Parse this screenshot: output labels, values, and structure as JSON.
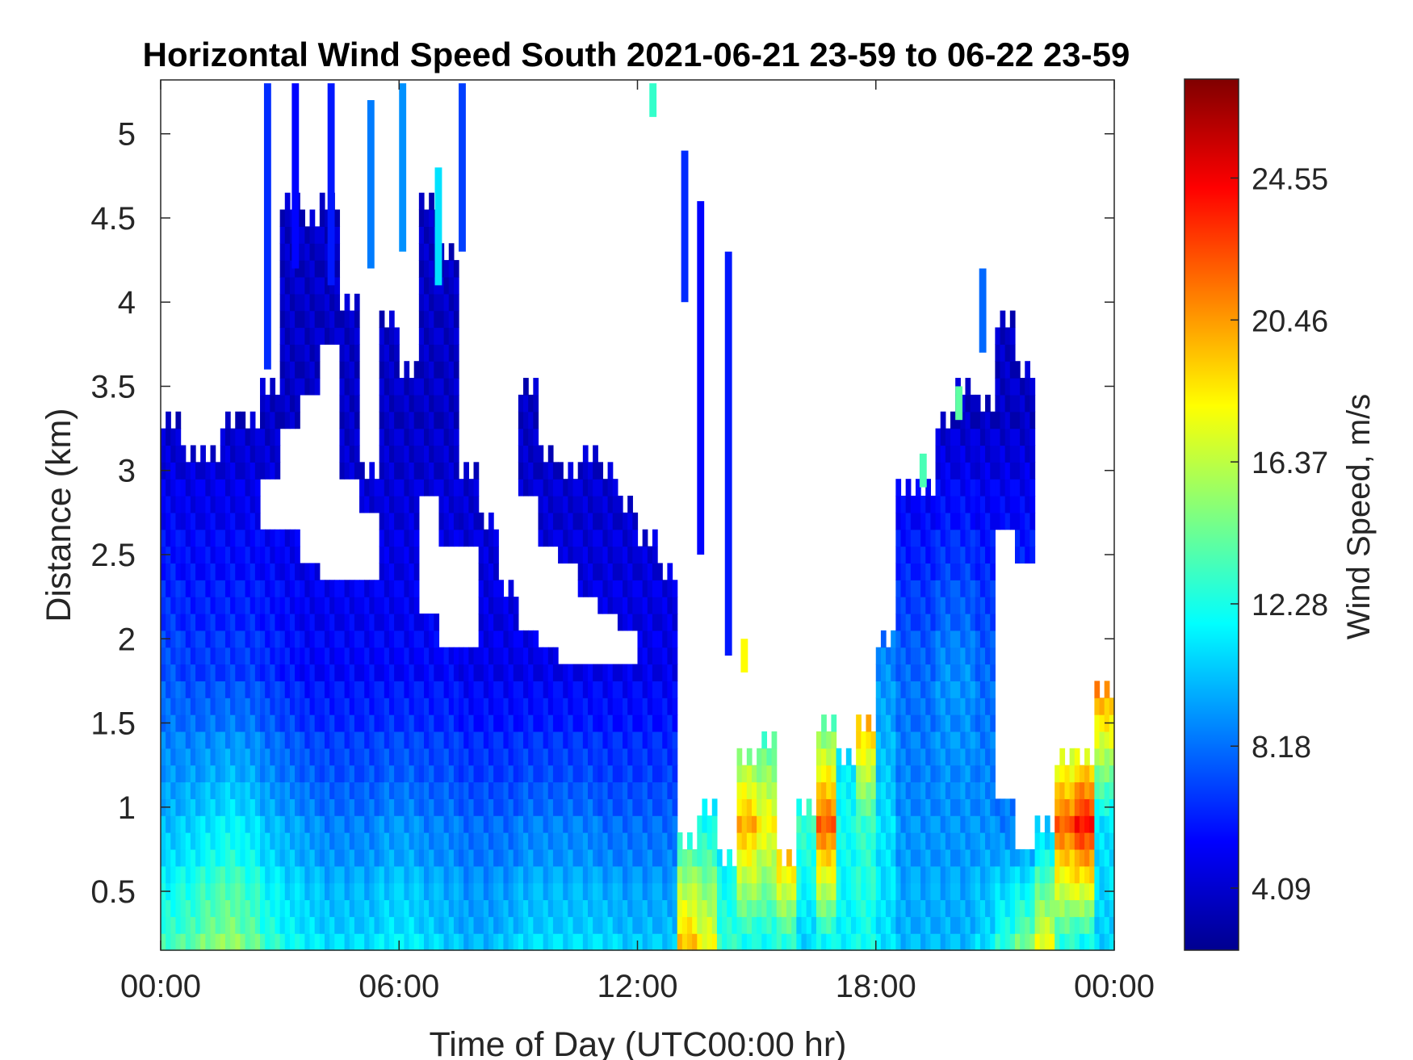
{
  "chart_data": {
    "type": "heatmap",
    "title": "Horizontal Wind Speed South 2021-06-21 23-59 to 06-22 23-59",
    "xlabel": "Time of Day (UTC00:00 hr)",
    "ylabel": "Distance (km)",
    "colorbar_label": "Wind Speed, m/s",
    "colormap": "jet",
    "xlim": [
      0,
      24
    ],
    "ylim": [
      0.15,
      5.32
    ],
    "clim": [
      2.3,
      27.4
    ],
    "x_ticks": [
      {
        "value": 0,
        "label": "00:00"
      },
      {
        "value": 6,
        "label": "06:00"
      },
      {
        "value": 12,
        "label": "12:00"
      },
      {
        "value": 18,
        "label": "18:00"
      },
      {
        "value": 24,
        "label": "00:00"
      }
    ],
    "y_ticks": [
      {
        "value": 0.5,
        "label": "0.5"
      },
      {
        "value": 1,
        "label": "1"
      },
      {
        "value": 1.5,
        "label": "1.5"
      },
      {
        "value": 2,
        "label": "2"
      },
      {
        "value": 2.5,
        "label": "2.5"
      },
      {
        "value": 3,
        "label": "3"
      },
      {
        "value": 3.5,
        "label": "3.5"
      },
      {
        "value": 4,
        "label": "4"
      },
      {
        "value": 4.5,
        "label": "4.5"
      },
      {
        "value": 5,
        "label": "5"
      }
    ],
    "colorbar_ticks": [
      {
        "value": 4.09,
        "label": "4.09"
      },
      {
        "value": 8.18,
        "label": "8.18"
      },
      {
        "value": 12.28,
        "label": "12.28"
      },
      {
        "value": 16.37,
        "label": "16.37"
      },
      {
        "value": 20.46,
        "label": "20.46"
      },
      {
        "value": 24.55,
        "label": "24.55"
      }
    ],
    "height_step_km": 0.1,
    "columns": [
      {
        "t": 0.0,
        "top": 3.2,
        "low": 13.5,
        "mid": 10.0,
        "up": 7.5,
        "gaps": []
      },
      {
        "t": 0.5,
        "top": 3.1,
        "low": 14.0,
        "mid": 10.5,
        "up": 7.0,
        "gaps": []
      },
      {
        "t": 1.0,
        "top": 3.1,
        "low": 15.0,
        "mid": 11.0,
        "up": 7.0,
        "gaps": []
      },
      {
        "t": 1.5,
        "top": 3.2,
        "low": 15.5,
        "mid": 11.5,
        "up": 7.0,
        "gaps": []
      },
      {
        "t": 2.0,
        "top": 3.3,
        "low": 14.5,
        "mid": 11.0,
        "up": 7.0,
        "gaps": []
      },
      {
        "t": 2.5,
        "top": 3.5,
        "low": 13.0,
        "mid": 10.0,
        "up": 6.5,
        "gaps": [
          [
            2.7,
            3.0
          ]
        ]
      },
      {
        "t": 3.0,
        "top": 4.5,
        "low": 12.0,
        "mid": 9.5,
        "up": 6.0,
        "gaps": [
          [
            2.7,
            3.3
          ]
        ]
      },
      {
        "t": 3.5,
        "top": 4.5,
        "low": 11.5,
        "mid": 9.0,
        "up": 5.5,
        "gaps": [
          [
            2.5,
            3.5
          ]
        ]
      },
      {
        "t": 4.0,
        "top": 4.6,
        "low": 11.0,
        "mid": 8.5,
        "up": 5.5,
        "gaps": [
          [
            2.4,
            3.8
          ]
        ]
      },
      {
        "t": 4.5,
        "top": 3.9,
        "low": 11.0,
        "mid": 8.5,
        "up": 5.5,
        "gaps": [
          [
            2.4,
            3.0
          ]
        ]
      },
      {
        "t": 5.0,
        "top": 3.0,
        "low": 11.0,
        "mid": 8.5,
        "up": 5.5,
        "gaps": [
          [
            2.4,
            2.8
          ]
        ]
      },
      {
        "t": 5.5,
        "top": 3.9,
        "low": 11.5,
        "mid": 9.0,
        "up": 5.5,
        "gaps": []
      },
      {
        "t": 6.0,
        "top": 3.5,
        "low": 11.5,
        "mid": 9.0,
        "up": 5.5,
        "gaps": []
      },
      {
        "t": 6.5,
        "top": 4.6,
        "low": 11.0,
        "mid": 8.5,
        "up": 5.5,
        "gaps": [
          [
            2.2,
            2.9
          ]
        ]
      },
      {
        "t": 7.0,
        "top": 4.3,
        "low": 10.5,
        "mid": 8.5,
        "up": 5.5,
        "gaps": [
          [
            2.0,
            2.6
          ]
        ]
      },
      {
        "t": 7.5,
        "top": 2.9,
        "low": 10.0,
        "mid": 8.0,
        "up": 5.0,
        "gaps": [
          [
            2.0,
            2.6
          ]
        ]
      },
      {
        "t": 8.0,
        "top": 2.7,
        "low": 10.0,
        "mid": 8.0,
        "up": 5.0,
        "gaps": []
      },
      {
        "t": 8.5,
        "top": 2.3,
        "low": 10.5,
        "mid": 8.0,
        "up": 5.0,
        "gaps": []
      },
      {
        "t": 9.0,
        "top": 3.4,
        "low": 11.0,
        "mid": 8.5,
        "up": 5.0,
        "gaps": [
          [
            2.1,
            2.9
          ]
        ]
      },
      {
        "t": 9.5,
        "top": 3.1,
        "low": 11.0,
        "mid": 8.5,
        "up": 5.0,
        "gaps": [
          [
            2.0,
            2.6
          ]
        ]
      },
      {
        "t": 10.0,
        "top": 3.0,
        "low": 11.0,
        "mid": 8.5,
        "up": 5.0,
        "gaps": [
          [
            1.9,
            2.5
          ]
        ]
      },
      {
        "t": 10.5,
        "top": 3.0,
        "low": 11.0,
        "mid": 8.5,
        "up": 5.0,
        "gaps": [
          [
            1.9,
            2.3
          ]
        ]
      },
      {
        "t": 11.0,
        "top": 3.0,
        "low": 11.0,
        "mid": 8.0,
        "up": 5.0,
        "gaps": [
          [
            1.9,
            2.2
          ]
        ]
      },
      {
        "t": 11.5,
        "top": 2.8,
        "low": 10.5,
        "mid": 8.0,
        "up": 5.0,
        "gaps": [
          [
            1.9,
            2.1
          ]
        ]
      },
      {
        "t": 12.0,
        "top": 2.5,
        "low": 10.5,
        "mid": 8.0,
        "up": 5.0,
        "gaps": []
      },
      {
        "t": 12.5,
        "top": 2.4,
        "low": 10.5,
        "mid": 8.0,
        "up": 5.0,
        "gaps": []
      },
      {
        "t": 13.0,
        "top": 0.8,
        "low": 20.0,
        "mid": 12.0,
        "up": 8.0,
        "gaps": []
      },
      {
        "t": 13.5,
        "top": 0.9,
        "low": 18.0,
        "mid": 12.0,
        "up": 8.0,
        "gaps": []
      },
      {
        "t": 14.0,
        "top": 0.7,
        "low": 13.0,
        "mid": 11.0,
        "up": 8.0,
        "gaps": []
      },
      {
        "t": 14.5,
        "top": 1.3,
        "low": 11.5,
        "mid": 20.0,
        "up": 9.0,
        "gaps": []
      },
      {
        "t": 15.0,
        "top": 1.3,
        "low": 11.5,
        "mid": 18.0,
        "up": 10.0,
        "gaps": []
      },
      {
        "t": 15.5,
        "top": 0.7,
        "low": 12.0,
        "mid": 22.0,
        "up": 10.0,
        "gaps": []
      },
      {
        "t": 16.0,
        "top": 1.0,
        "low": 10.5,
        "mid": 13.0,
        "up": 10.0,
        "gaps": []
      },
      {
        "t": 16.5,
        "top": 1.4,
        "low": 11.0,
        "mid": 22.0,
        "up": 10.0,
        "gaps": []
      },
      {
        "t": 17.0,
        "top": 1.3,
        "low": 11.5,
        "mid": 12.0,
        "up": 10.0,
        "gaps": []
      },
      {
        "t": 17.5,
        "top": 1.5,
        "low": 12.0,
        "mid": 13.0,
        "up": 23.0,
        "gaps": []
      },
      {
        "t": 18.0,
        "top": 1.9,
        "low": 11.0,
        "mid": 11.0,
        "up": 9.0,
        "gaps": []
      },
      {
        "t": 18.5,
        "top": 2.9,
        "low": 10.0,
        "mid": 9.0,
        "up": 8.0,
        "gaps": []
      },
      {
        "t": 19.0,
        "top": 2.9,
        "low": 10.0,
        "mid": 9.0,
        "up": 8.0,
        "gaps": []
      },
      {
        "t": 19.5,
        "top": 3.2,
        "low": 10.0,
        "mid": 9.0,
        "up": 9.0,
        "gaps": []
      },
      {
        "t": 20.0,
        "top": 3.5,
        "low": 10.0,
        "mid": 9.0,
        "up": 9.0,
        "gaps": []
      },
      {
        "t": 20.5,
        "top": 3.4,
        "low": 11.0,
        "mid": 9.0,
        "up": 8.0,
        "gaps": []
      },
      {
        "t": 21.0,
        "top": 3.8,
        "low": 13.0,
        "mid": 8.5,
        "up": 8.0,
        "gaps": [
          [
            1.0,
            2.7
          ]
        ]
      },
      {
        "t": 21.5,
        "top": 3.6,
        "low": 15.0,
        "mid": 8.0,
        "up": 8.0,
        "gaps": [
          [
            0.7,
            2.5
          ]
        ]
      },
      {
        "t": 22.0,
        "top": 0.9,
        "low": 18.0,
        "mid": 10.0,
        "up": 10.0,
        "gaps": []
      },
      {
        "t": 22.5,
        "top": 1.2,
        "low": 12.0,
        "mid": 22.0,
        "up": 10.0,
        "gaps": []
      },
      {
        "t": 23.0,
        "top": 1.3,
        "low": 11.0,
        "mid": 24.0,
        "up": 10.0,
        "gaps": []
      },
      {
        "t": 23.5,
        "top": 1.7,
        "low": 10.5,
        "mid": 11.0,
        "up": 22.0,
        "gaps": []
      }
    ],
    "isolated_patches": [
      {
        "t": 2.6,
        "y0": 3.6,
        "y1": 5.3,
        "v": 6.5
      },
      {
        "t": 3.3,
        "y0": 4.2,
        "y1": 5.3,
        "v": 5.5
      },
      {
        "t": 4.2,
        "y0": 4.1,
        "y1": 5.3,
        "v": 6.0
      },
      {
        "t": 5.2,
        "y0": 4.2,
        "y1": 5.2,
        "v": 8.5
      },
      {
        "t": 6.0,
        "y0": 4.3,
        "y1": 5.3,
        "v": 9.0
      },
      {
        "t": 6.9,
        "y0": 4.1,
        "y1": 4.8,
        "v": 11.0
      },
      {
        "t": 7.5,
        "y0": 4.3,
        "y1": 5.3,
        "v": 7.0
      },
      {
        "t": 12.3,
        "y0": 5.1,
        "y1": 5.3,
        "v": 13.0
      },
      {
        "t": 13.1,
        "y0": 4.0,
        "y1": 4.9,
        "v": 6.5
      },
      {
        "t": 13.5,
        "y0": 2.5,
        "y1": 4.6,
        "v": 5.5
      },
      {
        "t": 14.2,
        "y0": 1.9,
        "y1": 4.3,
        "v": 6.0
      },
      {
        "t": 14.6,
        "y0": 1.8,
        "y1": 2.0,
        "v": 18.0
      },
      {
        "t": 19.1,
        "y0": 2.9,
        "y1": 3.1,
        "v": 13.5
      },
      {
        "t": 20.0,
        "y0": 3.3,
        "y1": 3.5,
        "v": 14.0
      },
      {
        "t": 20.6,
        "y0": 3.7,
        "y1": 4.2,
        "v": 8.0
      }
    ]
  }
}
